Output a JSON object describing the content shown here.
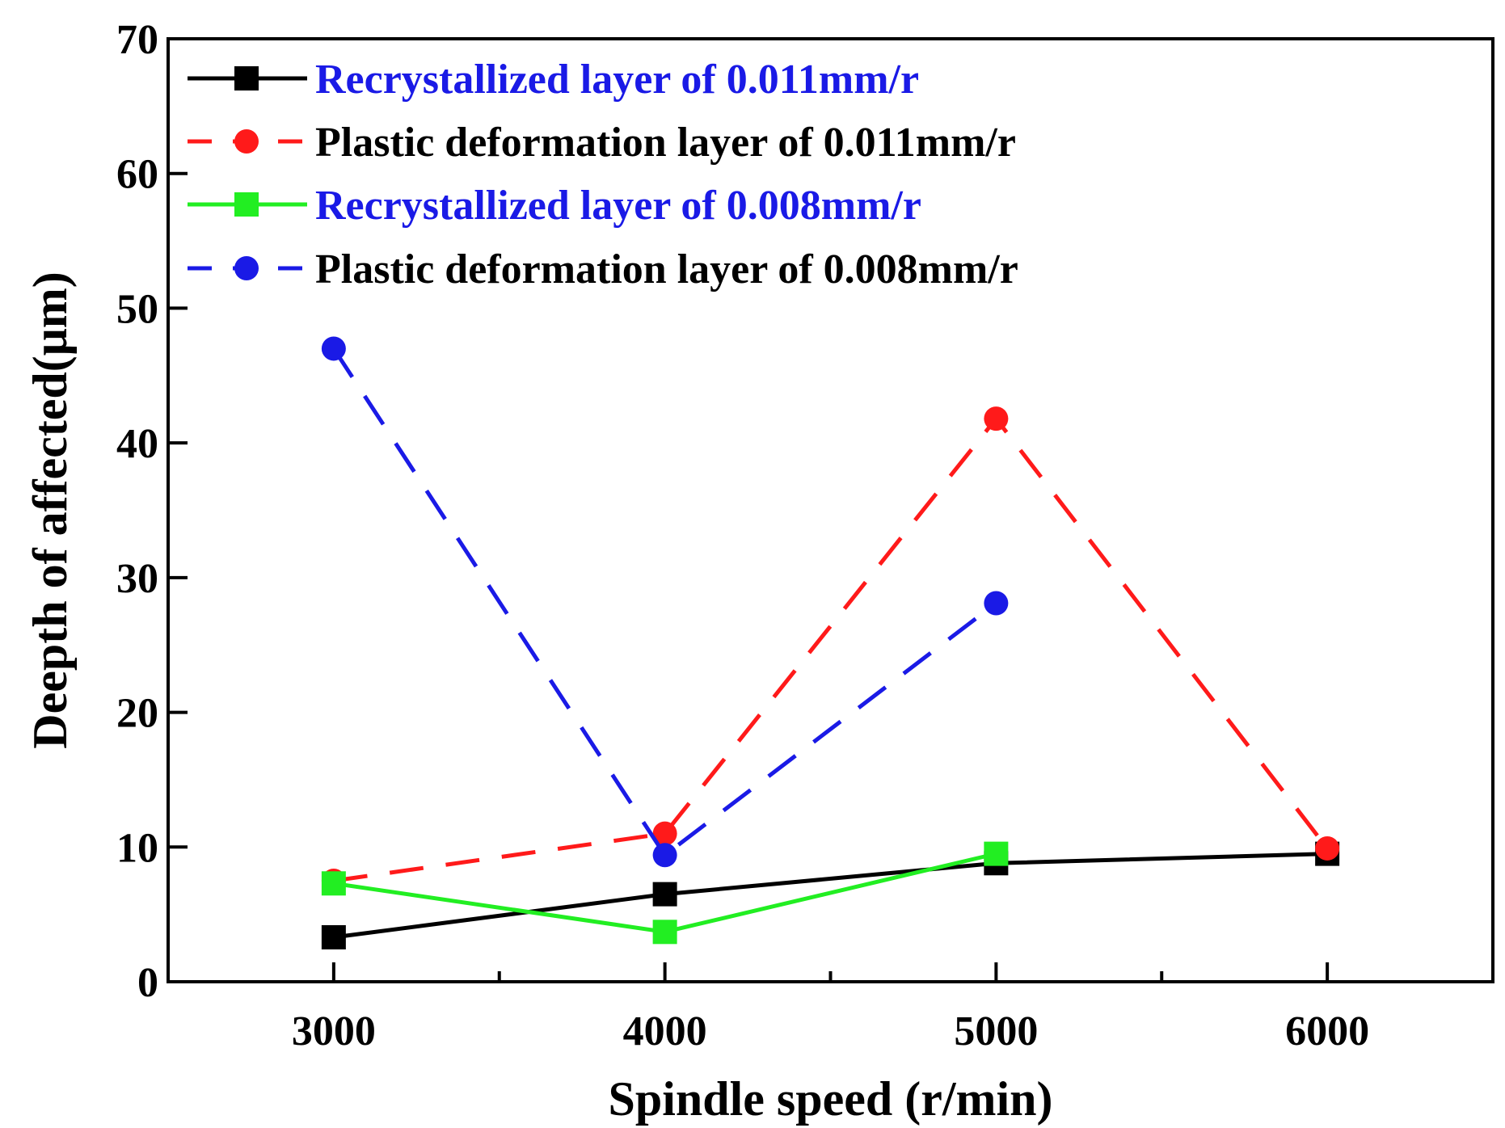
{
  "chart_data": {
    "type": "line",
    "xlabel": "Spindle speed (r/min)",
    "ylabel": "Deepth of affected(μm)",
    "xlim": [
      2500,
      6500
    ],
    "ylim": [
      0,
      70
    ],
    "x_ticks": [
      3000,
      4000,
      5000,
      6000
    ],
    "x_minor_ticks": [
      3500,
      4500,
      5500
    ],
    "y_ticks": [
      0,
      10,
      20,
      30,
      40,
      50,
      60,
      70
    ],
    "grid": false,
    "legend_position": "top-left",
    "series": [
      {
        "name": "Recrystallized layer of 0.011mm/r",
        "color": "#000000",
        "label_color": "#1a1ae6",
        "line_style": "solid",
        "marker": "square",
        "x": [
          3000,
          4000,
          5000,
          6000
        ],
        "values": [
          3.3,
          6.5,
          8.8,
          9.5
        ]
      },
      {
        "name": "Plastic deformation layer of 0.011mm/r",
        "color": "#ff1a1a",
        "label_color": "#000000",
        "line_style": "dashed",
        "marker": "circle",
        "x": [
          3000,
          4000,
          5000,
          6000
        ],
        "values": [
          7.5,
          11.0,
          41.8,
          9.9
        ]
      },
      {
        "name": "Recrystallized layer of 0.008mm/r",
        "color": "#22ee22",
        "label_color": "#1a1ae6",
        "line_style": "solid",
        "marker": "square",
        "x": [
          3000,
          4000,
          5000
        ],
        "values": [
          7.3,
          3.7,
          9.5
        ]
      },
      {
        "name": "Plastic deformation layer of 0.008mm/r",
        "color": "#1a1ae6",
        "label_color": "#000000",
        "line_style": "dashed",
        "marker": "circle",
        "x": [
          3000,
          4000,
          5000
        ],
        "values": [
          47.0,
          9.4,
          28.1
        ]
      }
    ]
  }
}
